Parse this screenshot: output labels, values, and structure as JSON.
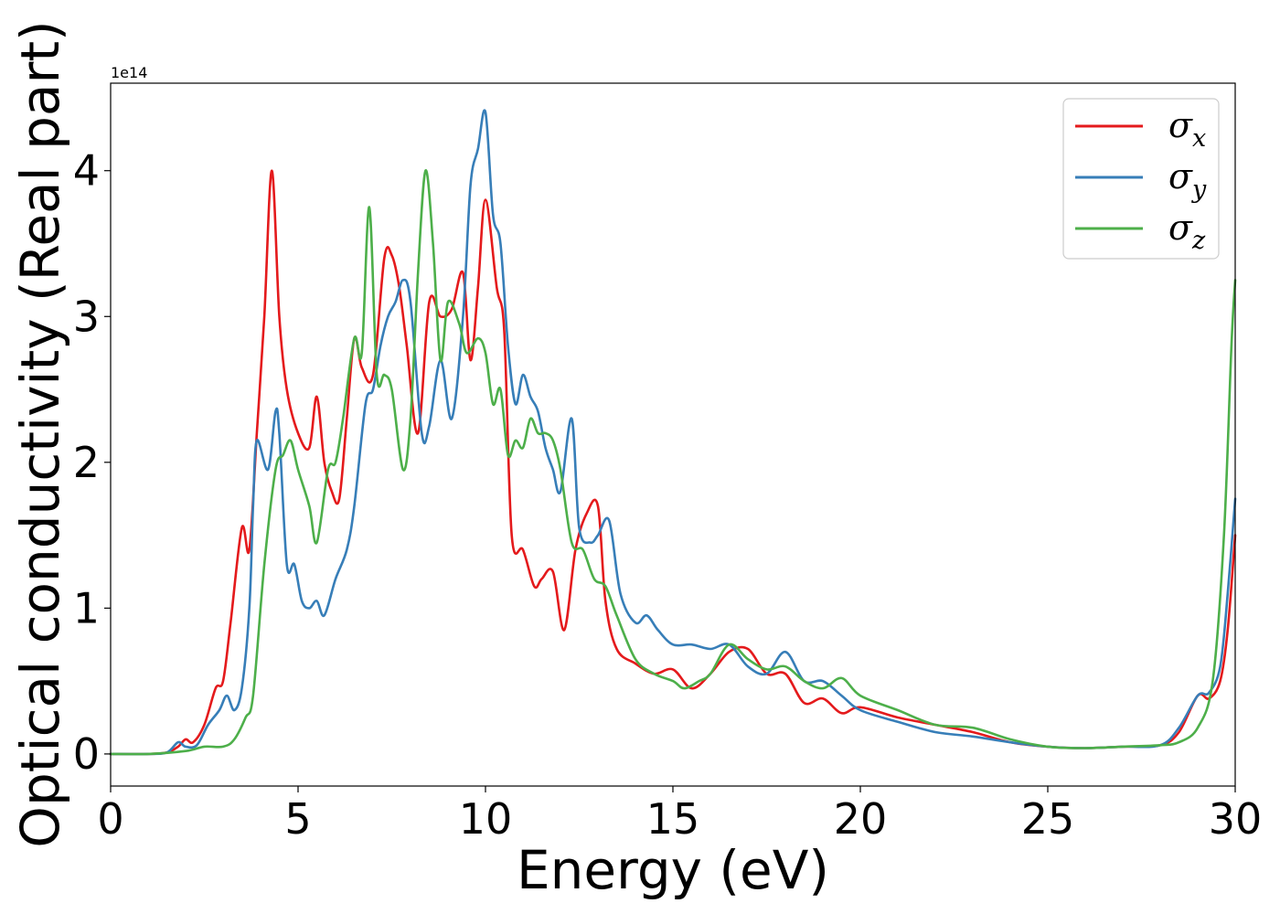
{
  "chart_data": {
    "type": "line",
    "xlabel": "Energy (eV)",
    "ylabel": "Optical conductivity (Real part)",
    "y_offset_label": "1e14",
    "xlim": [
      0,
      30
    ],
    "ylim": [
      -0.22,
      4.6
    ],
    "xticks": [
      0,
      5,
      10,
      15,
      20,
      25,
      30
    ],
    "xtick_labels": [
      "0",
      "5",
      "10",
      "15",
      "20",
      "25",
      "30"
    ],
    "yticks": [
      0,
      1,
      2,
      3,
      4
    ],
    "ytick_labels": [
      "0",
      "1",
      "2",
      "3",
      "4"
    ],
    "grid": false,
    "legend_position": "top-right",
    "series": [
      {
        "name": "σx",
        "symbol": "σ",
        "subscript": "x",
        "color": "#e41a1c",
        "x": [
          0,
          1,
          1.5,
          1.8,
          2.0,
          2.2,
          2.5,
          2.8,
          3.0,
          3.2,
          3.5,
          3.7,
          3.9,
          4.1,
          4.3,
          4.5,
          4.7,
          5.0,
          5.3,
          5.5,
          5.7,
          5.9,
          6.1,
          6.3,
          6.5,
          6.7,
          7.0,
          7.3,
          7.5,
          7.7,
          7.9,
          8.2,
          8.5,
          8.8,
          9.1,
          9.4,
          9.6,
          9.8,
          10.0,
          10.3,
          10.5,
          10.7,
          11.0,
          11.3,
          11.5,
          11.8,
          12.1,
          12.4,
          12.7,
          13.0,
          13.2,
          13.5,
          14.0,
          14.5,
          15.0,
          15.5,
          16.0,
          16.5,
          17.0,
          17.5,
          18.0,
          18.5,
          19.0,
          19.5,
          20.0,
          21.0,
          22.0,
          23.0,
          24.0,
          25.0,
          26.0,
          27.0,
          28.0,
          28.5,
          29.0,
          29.3,
          29.6,
          29.8,
          30.0
        ],
        "values": [
          0,
          0,
          0.01,
          0.05,
          0.1,
          0.08,
          0.2,
          0.45,
          0.5,
          0.9,
          1.55,
          1.4,
          2.2,
          3.0,
          4.0,
          3.0,
          2.5,
          2.2,
          2.1,
          2.45,
          2.0,
          1.8,
          1.75,
          2.3,
          2.85,
          2.65,
          2.6,
          3.4,
          3.42,
          3.2,
          2.8,
          2.2,
          3.1,
          3.0,
          3.05,
          3.3,
          2.7,
          3.2,
          3.8,
          3.2,
          2.9,
          1.5,
          1.4,
          1.15,
          1.2,
          1.25,
          0.85,
          1.4,
          1.65,
          1.7,
          1.05,
          0.72,
          0.62,
          0.55,
          0.58,
          0.45,
          0.55,
          0.7,
          0.72,
          0.55,
          0.55,
          0.35,
          0.38,
          0.28,
          0.32,
          0.25,
          0.2,
          0.15,
          0.08,
          0.05,
          0.04,
          0.05,
          0.06,
          0.15,
          0.4,
          0.38,
          0.5,
          0.85,
          1.5
        ]
      },
      {
        "name": "σy",
        "symbol": "σ",
        "subscript": "y",
        "color": "#377eb8",
        "x": [
          0,
          1,
          1.5,
          1.8,
          2.0,
          2.3,
          2.6,
          2.9,
          3.1,
          3.3,
          3.5,
          3.7,
          3.8,
          3.9,
          4.2,
          4.4,
          4.5,
          4.7,
          4.9,
          5.1,
          5.3,
          5.5,
          5.7,
          6.0,
          6.3,
          6.5,
          6.8,
          7.0,
          7.2,
          7.4,
          7.6,
          7.8,
          8.0,
          8.3,
          8.5,
          8.8,
          9.1,
          9.4,
          9.6,
          9.8,
          10.0,
          10.2,
          10.4,
          10.6,
          10.8,
          11.0,
          11.2,
          11.4,
          11.6,
          11.8,
          12.0,
          12.3,
          12.5,
          12.8,
          13.0,
          13.3,
          13.6,
          14.0,
          14.3,
          14.6,
          15.0,
          15.5,
          16.0,
          16.5,
          17.0,
          17.5,
          18.0,
          18.5,
          19.0,
          19.5,
          20.0,
          21.0,
          22.0,
          23.0,
          24.0,
          25.0,
          26.0,
          27.0,
          28.0,
          28.5,
          29.0,
          29.3,
          29.6,
          29.8,
          30.0
        ],
        "values": [
          0,
          0,
          0.01,
          0.08,
          0.05,
          0.06,
          0.2,
          0.3,
          0.4,
          0.3,
          0.45,
          1.0,
          1.7,
          2.15,
          1.95,
          2.35,
          2.2,
          1.3,
          1.3,
          1.05,
          1.0,
          1.05,
          0.95,
          1.2,
          1.4,
          1.7,
          2.4,
          2.5,
          2.8,
          3.0,
          3.1,
          3.25,
          3.1,
          2.2,
          2.25,
          2.7,
          2.3,
          3.0,
          3.9,
          4.15,
          4.4,
          3.7,
          3.5,
          2.8,
          2.4,
          2.6,
          2.45,
          2.35,
          2.1,
          1.95,
          1.8,
          2.3,
          1.55,
          1.45,
          1.5,
          1.6,
          1.1,
          0.9,
          0.95,
          0.85,
          0.75,
          0.75,
          0.72,
          0.75,
          0.6,
          0.55,
          0.7,
          0.5,
          0.5,
          0.4,
          0.3,
          0.22,
          0.15,
          0.12,
          0.08,
          0.05,
          0.04,
          0.05,
          0.06,
          0.18,
          0.4,
          0.42,
          0.6,
          1.1,
          1.75
        ]
      },
      {
        "name": "σz",
        "symbol": "σ",
        "subscript": "z",
        "color": "#4daf4a",
        "x": [
          0,
          1,
          2.0,
          2.5,
          3.0,
          3.3,
          3.6,
          3.8,
          4.1,
          4.4,
          4.6,
          4.8,
          5.0,
          5.3,
          5.5,
          5.8,
          6.0,
          6.2,
          6.5,
          6.7,
          6.9,
          7.1,
          7.3,
          7.5,
          7.8,
          8.0,
          8.2,
          8.4,
          8.6,
          8.8,
          9.0,
          9.3,
          9.5,
          9.8,
          10.0,
          10.2,
          10.4,
          10.6,
          10.8,
          11.0,
          11.2,
          11.4,
          11.6,
          11.8,
          12.0,
          12.3,
          12.6,
          12.9,
          13.2,
          13.5,
          14.0,
          14.5,
          15.0,
          15.3,
          15.7,
          16.0,
          16.5,
          17.0,
          17.5,
          18.0,
          18.5,
          19.0,
          19.5,
          20.0,
          21.0,
          22.0,
          23.0,
          24.0,
          25.0,
          26.0,
          27.0,
          28.0,
          28.5,
          29.0,
          29.4,
          29.7,
          29.9,
          30.0
        ],
        "values": [
          0,
          0,
          0.02,
          0.05,
          0.05,
          0.1,
          0.25,
          0.4,
          1.3,
          1.95,
          2.05,
          2.15,
          1.95,
          1.7,
          1.45,
          1.95,
          2.0,
          2.3,
          2.85,
          2.75,
          3.75,
          2.6,
          2.6,
          2.5,
          1.95,
          2.3,
          3.3,
          4.0,
          3.5,
          2.7,
          3.1,
          2.95,
          2.75,
          2.85,
          2.75,
          2.4,
          2.5,
          2.05,
          2.15,
          2.1,
          2.3,
          2.2,
          2.2,
          2.15,
          1.95,
          1.45,
          1.4,
          1.2,
          1.15,
          0.95,
          0.65,
          0.55,
          0.5,
          0.45,
          0.5,
          0.55,
          0.75,
          0.65,
          0.58,
          0.6,
          0.5,
          0.45,
          0.52,
          0.4,
          0.3,
          0.2,
          0.18,
          0.1,
          0.05,
          0.04,
          0.05,
          0.06,
          0.08,
          0.18,
          0.5,
          1.5,
          2.8,
          3.25
        ]
      }
    ]
  }
}
